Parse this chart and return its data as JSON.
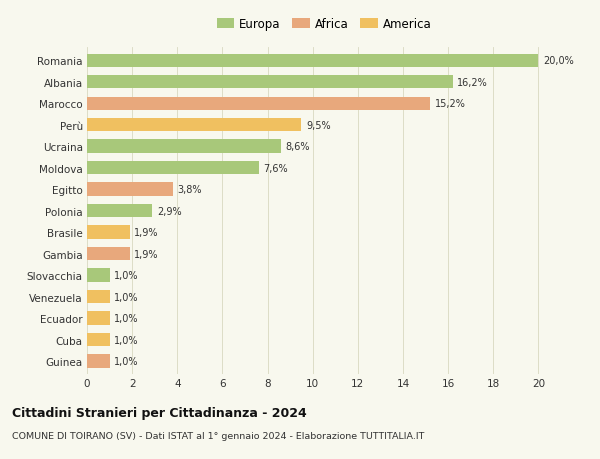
{
  "categories": [
    "Guinea",
    "Cuba",
    "Ecuador",
    "Venezuela",
    "Slovacchia",
    "Gambia",
    "Brasile",
    "Polonia",
    "Egitto",
    "Moldova",
    "Ucraina",
    "Perù",
    "Marocco",
    "Albania",
    "Romania"
  ],
  "values": [
    1.0,
    1.0,
    1.0,
    1.0,
    1.0,
    1.9,
    1.9,
    2.9,
    3.8,
    7.6,
    8.6,
    9.5,
    15.2,
    16.2,
    20.0
  ],
  "labels": [
    "1,0%",
    "1,0%",
    "1,0%",
    "1,0%",
    "1,0%",
    "1,9%",
    "1,9%",
    "2,9%",
    "3,8%",
    "7,6%",
    "8,6%",
    "9,5%",
    "15,2%",
    "16,2%",
    "20,0%"
  ],
  "colors": [
    "#e8a87c",
    "#f0c060",
    "#f0c060",
    "#f0c060",
    "#a8c87a",
    "#e8a87c",
    "#f0c060",
    "#a8c87a",
    "#e8a87c",
    "#a8c87a",
    "#a8c87a",
    "#f0c060",
    "#e8a87c",
    "#a8c87a",
    "#a8c87a"
  ],
  "legend_labels": [
    "Europa",
    "Africa",
    "America"
  ],
  "legend_colors": [
    "#a8c87a",
    "#e8a87c",
    "#f0c060"
  ],
  "title": "Cittadini Stranieri per Cittadinanza - 2024",
  "subtitle": "COMUNE DI TOIRANO (SV) - Dati ISTAT al 1° gennaio 2024 - Elaborazione TUTTITALIA.IT",
  "xlim": [
    0,
    21
  ],
  "xticks": [
    0,
    2,
    4,
    6,
    8,
    10,
    12,
    14,
    16,
    18,
    20
  ],
  "background_color": "#f8f8ee",
  "grid_color": "#d8d8c0",
  "bar_height": 0.62
}
